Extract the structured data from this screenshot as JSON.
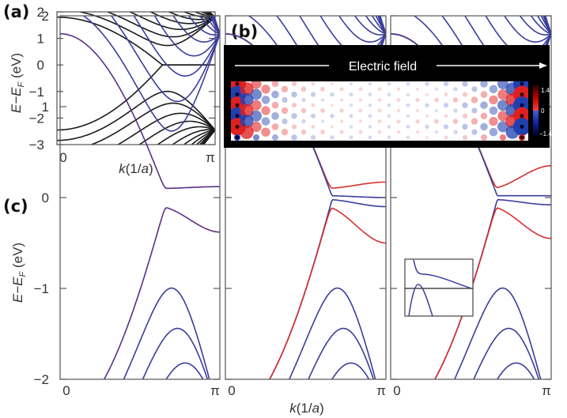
{
  "figure": {
    "label_a": "(a)",
    "label_b": "(b)",
    "label_c": "(c)",
    "panel_b": {
      "title": "Electric field",
      "colorbar_ticks": [
        "1.4",
        "0",
        "−1.4"
      ],
      "colors": {
        "positive": "#e02020",
        "negative": "#2040b0",
        "max": "#300000",
        "min": "#000030"
      }
    }
  },
  "chart_data": [
    {
      "id": "a",
      "type": "line",
      "ylabel": {
        "main": "E−E",
        "sub": "F",
        "unit": " (eV)"
      },
      "xlabel": {
        "main": "k",
        "rest": "(1/",
        "a": "a",
        "close": ")"
      },
      "xticks": [
        "0",
        "π"
      ],
      "xlim": [
        0,
        3.1416
      ],
      "yticks": [
        "2",
        "1",
        "0",
        "−1",
        "−2",
        "−3"
      ],
      "ytick_values": [
        2,
        1,
        0,
        -1,
        -2,
        -3
      ],
      "ylim": [
        -3,
        2
      ],
      "line_color": "#1a1a1a",
      "bands": {
        "n": 14,
        "t_conduction": 1.8,
        "t_valence": 2.45
      },
      "edge_states": [
        {
          "gap": 0,
          "end": 0,
          "sign": 1,
          "color": "#1a1a1a"
        },
        {
          "gap": 0,
          "end": 0,
          "sign": -1,
          "color": "#1a1a1a"
        }
      ]
    },
    {
      "id": "c1",
      "type": "line",
      "ylabel": {
        "main": "E−E",
        "sub": "F",
        "unit": " (eV)"
      },
      "xticks": [
        "0",
        "π"
      ],
      "xlim": [
        0,
        3.1416
      ],
      "yticks": [
        "2",
        "1",
        "0",
        "−1",
        "−2"
      ],
      "ytick_values": [
        2,
        1,
        0,
        -1,
        -2
      ],
      "ylim": [
        -2,
        2
      ],
      "line_color": "#3a3d9c",
      "bands": {
        "n": 14,
        "t_conduction": 1.8,
        "t_valence": 2.45
      },
      "edge_states": [
        {
          "gap": 0.1,
          "end": 0.12,
          "sign": 1,
          "color": "#5a2f86"
        },
        {
          "gap": 0.1,
          "end": -0.38,
          "sign": -1,
          "color": "#5a2f86"
        }
      ]
    },
    {
      "id": "c2",
      "type": "line",
      "xlabel": {
        "main": "k",
        "rest": "(1/",
        "a": "a",
        "close": ")"
      },
      "xticks": [
        "0",
        "π"
      ],
      "xlim": [
        0,
        3.1416
      ],
      "ylim": [
        -2,
        2
      ],
      "ytick_values": [
        2,
        1,
        0,
        -1,
        -2
      ],
      "line_color": "#3a3d9c",
      "bands": {
        "n": 14,
        "t_conduction": 1.8,
        "t_valence": 2.45
      },
      "edge_states": [
        {
          "gap": 0.1,
          "end": 0.17,
          "sign": 1,
          "color": "#d8302c"
        },
        {
          "gap": 0.02,
          "end": 0.0,
          "sign": 1,
          "color": "#3a3d9c"
        },
        {
          "gap": 0.02,
          "end": -0.1,
          "sign": -1,
          "color": "#3a3d9c"
        },
        {
          "gap": 0.1,
          "end": -0.5,
          "sign": -1,
          "color": "#d8302c"
        }
      ]
    },
    {
      "id": "c3",
      "type": "line",
      "xticks": [
        "0",
        "π"
      ],
      "xlim": [
        0,
        3.1416
      ],
      "ylim": [
        -2,
        2
      ],
      "ytick_values": [
        2,
        1,
        0,
        -1,
        -2
      ],
      "line_color": "#3a3d9c",
      "bands": {
        "n": 14,
        "t_conduction": 1.8,
        "t_valence": 2.45
      },
      "edge_states": [
        {
          "gap": 0.1,
          "end": 0.35,
          "sign": 1,
          "color": "#d8302c"
        },
        {
          "gap": 0.02,
          "end": 0.02,
          "sign": 1,
          "color": "#3a3d9c"
        },
        {
          "gap": 0.02,
          "end": -0.08,
          "sign": -1,
          "color": "#3a3d9c"
        },
        {
          "gap": 0.1,
          "end": -0.45,
          "sign": -1,
          "color": "#d8302c"
        }
      ],
      "inset": true
    }
  ]
}
